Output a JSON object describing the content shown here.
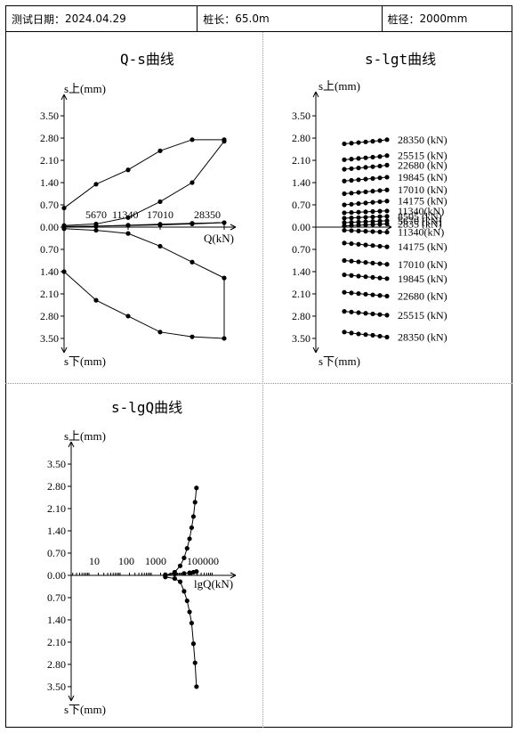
{
  "header": {
    "date_label": "测试日期：",
    "date_value": "2024.04.29",
    "length_label": "桩长：",
    "length_value": "65.0m",
    "diameter_label": "桩径：",
    "diameter_value": "2000mm"
  },
  "chart_data": [
    {
      "type": "line",
      "title": "Q-s曲线",
      "xlabel": "Q(kN)",
      "ylabel_top": "s上(mm)",
      "ylabel_bottom": "s下(mm)",
      "y_ticks": [
        "3.50",
        "2.80",
        "2.10",
        "1.40",
        "0.70",
        "0.00",
        "0.70",
        "1.40",
        "2.10",
        "2.80",
        "3.50"
      ],
      "x_tick_labels": [
        "5670",
        "11340",
        "17010",
        "28350"
      ],
      "ylim": [
        -3.5,
        3.5
      ],
      "xlim": [
        0,
        30000
      ],
      "series": [
        {
          "x": [
            0,
            5670,
            11340,
            17010,
            22680,
            28350,
            22680,
            17010,
            11340,
            5670,
            0
          ],
          "y": [
            0.0,
            0.03,
            0.06,
            0.09,
            0.12,
            0.14,
            0.1,
            0.07,
            0.05,
            0.03,
            0.02
          ]
        },
        {
          "x": [
            0,
            5670,
            11340,
            17010,
            22680,
            28350,
            28350,
            22680,
            17010,
            11340,
            5670,
            0
          ],
          "y": [
            0.05,
            0.1,
            0.3,
            0.8,
            1.4,
            2.7,
            2.75,
            2.75,
            2.4,
            1.8,
            1.35,
            0.6
          ]
        },
        {
          "x": [
            0,
            5670,
            11340,
            17010,
            22680,
            28350,
            28350,
            22680,
            17010,
            11340,
            5670,
            0
          ],
          "y": [
            -0.05,
            -0.1,
            -0.2,
            -0.6,
            -1.1,
            -1.6,
            -3.5,
            -3.45,
            -3.3,
            -2.8,
            -2.3,
            -1.4
          ]
        }
      ]
    },
    {
      "type": "line",
      "title": "s-lgt曲线",
      "ylabel_top": "s上(mm)",
      "ylabel_bottom": "s下(mm)",
      "y_ticks": [
        "3.50",
        "2.80",
        "2.10",
        "1.40",
        "0.70",
        "0.00",
        "0.70",
        "1.40",
        "2.10",
        "2.80",
        "3.50"
      ],
      "ylim": [
        -3.5,
        3.5
      ],
      "x_points": [
        1,
        2,
        3,
        4,
        5,
        6,
        7
      ],
      "series_labels_top": [
        "28350 (kN)",
        "25515 (kN)",
        "22680 (kN)",
        "19845 (kN)",
        "17010 (kN)",
        "14175 (kN)",
        "11340(kN)",
        "8505 (kN)",
        "5670 (kN)",
        "2835 (kN)",
        "11340(kN)"
      ],
      "series_labels_bottom": [
        "14175 (kN)",
        "17010 (kN)",
        "19845 (kN)",
        "22680 (kN)",
        "25515 (kN)",
        "28350 (kN)"
      ],
      "top_values": [
        [
          2.62,
          2.64,
          2.66,
          2.68,
          2.7,
          2.72,
          2.75
        ],
        [
          2.12,
          2.14,
          2.16,
          2.18,
          2.2,
          2.22,
          2.25
        ],
        [
          1.82,
          1.84,
          1.86,
          1.88,
          1.9,
          1.92,
          1.95
        ],
        [
          1.45,
          1.47,
          1.49,
          1.51,
          1.53,
          1.55,
          1.57
        ],
        [
          1.05,
          1.07,
          1.09,
          1.11,
          1.13,
          1.15,
          1.17
        ],
        [
          0.7,
          0.72,
          0.74,
          0.76,
          0.78,
          0.8,
          0.82
        ],
        [
          0.45,
          0.46,
          0.47,
          0.48,
          0.49,
          0.5,
          0.51
        ],
        [
          0.28,
          0.29,
          0.3,
          0.31,
          0.32,
          0.33,
          0.34
        ],
        [
          0.14,
          0.15,
          0.16,
          0.17,
          0.18,
          0.19,
          0.2
        ],
        [
          0.04,
          0.05,
          0.06,
          0.07,
          0.08,
          0.09,
          0.1
        ],
        [
          -0.1,
          -0.11,
          -0.12,
          -0.13,
          -0.14,
          -0.15,
          -0.16
        ]
      ],
      "bottom_values": [
        [
          -0.5,
          -0.52,
          -0.54,
          -0.56,
          -0.58,
          -0.6,
          -0.62
        ],
        [
          -1.05,
          -1.07,
          -1.09,
          -1.11,
          -1.13,
          -1.15,
          -1.17
        ],
        [
          -1.5,
          -1.52,
          -1.54,
          -1.56,
          -1.58,
          -1.6,
          -1.62
        ],
        [
          -2.05,
          -2.07,
          -2.09,
          -2.11,
          -2.13,
          -2.15,
          -2.17
        ],
        [
          -2.65,
          -2.67,
          -2.69,
          -2.71,
          -2.73,
          -2.75,
          -2.77
        ],
        [
          -3.3,
          -3.33,
          -3.36,
          -3.38,
          -3.4,
          -3.43,
          -3.46
        ]
      ]
    },
    {
      "type": "line",
      "title": "s-lgQ曲线",
      "xlabel": "lgQ(kN)",
      "ylabel_top": "s上(mm)",
      "ylabel_bottom": "s下(mm)",
      "y_ticks": [
        "3.50",
        "2.80",
        "2.10",
        "1.40",
        "0.70",
        "0.00",
        "0.70",
        "1.40",
        "2.10",
        "2.80",
        "3.50"
      ],
      "x_tick_labels": [
        "10",
        "100",
        "1000",
        "100000"
      ],
      "ylim": [
        -3.5,
        3.5
      ],
      "series": [
        {
          "x": [
            2835,
            5670,
            8505,
            11340,
            14175,
            17010,
            19845,
            22680,
            25515,
            28350
          ],
          "y": [
            0.0,
            0.1,
            0.3,
            0.55,
            0.85,
            1.15,
            1.5,
            1.85,
            2.3,
            2.75
          ]
        },
        {
          "x": [
            2835,
            5670,
            8505,
            11340,
            14175,
            17010,
            19845,
            22680,
            25515,
            28350
          ],
          "y": [
            -0.05,
            -0.1,
            -0.2,
            -0.5,
            -0.8,
            -1.15,
            -1.5,
            -2.15,
            -2.75,
            -3.5
          ]
        },
        {
          "x": [
            2835,
            5670,
            11340,
            17010,
            22680,
            28350
          ],
          "y": [
            0.02,
            0.04,
            0.06,
            0.08,
            0.1,
            0.12
          ]
        }
      ]
    }
  ]
}
